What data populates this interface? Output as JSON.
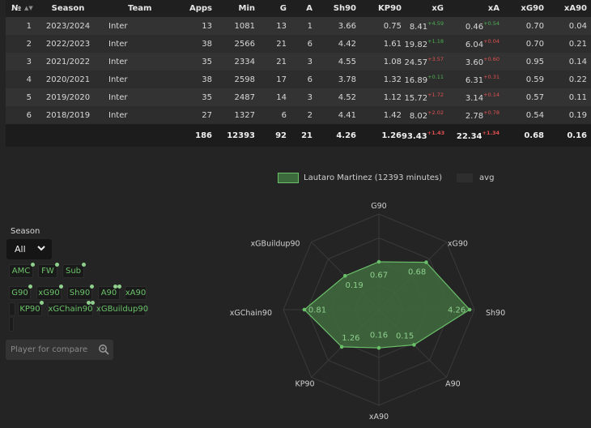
{
  "table": {
    "headers": {
      "num": "№",
      "season": "Season",
      "team": "Team",
      "apps": "Apps",
      "min": "Min",
      "g": "G",
      "a": "A",
      "sh90": "Sh90",
      "kp90": "KP90",
      "xg": "xG",
      "xa": "xA",
      "xg90": "xG90",
      "xa90": "xA90"
    },
    "rows": [
      {
        "num": "1",
        "season": "2023/2024",
        "team": "Inter",
        "apps": "13",
        "min": "1081",
        "g": "13",
        "a": "1",
        "sh90": "3.66",
        "kp90": "0.75",
        "xg": "8.41",
        "xg_diff": "+4.59",
        "xg_diff_sign": "pos",
        "xa": "0.46",
        "xa_diff": "+0.54",
        "xa_diff_sign": "pos",
        "xg90": "0.70",
        "xa90": "0.04"
      },
      {
        "num": "2",
        "season": "2022/2023",
        "team": "Inter",
        "apps": "38",
        "min": "2566",
        "g": "21",
        "a": "6",
        "sh90": "4.42",
        "kp90": "1.61",
        "xg": "19.82",
        "xg_diff": "+1.18",
        "xg_diff_sign": "pos",
        "xa": "6.04",
        "xa_diff": "+0.04",
        "xa_diff_sign": "neg",
        "xg90": "0.70",
        "xa90": "0.21"
      },
      {
        "num": "3",
        "season": "2021/2022",
        "team": "Inter",
        "apps": "35",
        "min": "2334",
        "g": "21",
        "a": "3",
        "sh90": "4.55",
        "kp90": "1.08",
        "xg": "24.57",
        "xg_diff": "+3.57",
        "xg_diff_sign": "neg",
        "xa": "3.60",
        "xa_diff": "+0.60",
        "xa_diff_sign": "neg",
        "xg90": "0.95",
        "xa90": "0.14"
      },
      {
        "num": "4",
        "season": "2020/2021",
        "team": "Inter",
        "apps": "38",
        "min": "2598",
        "g": "17",
        "a": "6",
        "sh90": "3.78",
        "kp90": "1.32",
        "xg": "16.89",
        "xg_diff": "+0.11",
        "xg_diff_sign": "pos",
        "xa": "6.31",
        "xa_diff": "+0.31",
        "xa_diff_sign": "neg",
        "xg90": "0.59",
        "xa90": "0.22"
      },
      {
        "num": "5",
        "season": "2019/2020",
        "team": "Inter",
        "apps": "35",
        "min": "2487",
        "g": "14",
        "a": "3",
        "sh90": "4.52",
        "kp90": "1.12",
        "xg": "15.72",
        "xg_diff": "+1.72",
        "xg_diff_sign": "neg",
        "xa": "3.14",
        "xa_diff": "+0.14",
        "xa_diff_sign": "neg",
        "xg90": "0.57",
        "xa90": "0.11"
      },
      {
        "num": "6",
        "season": "2018/2019",
        "team": "Inter",
        "apps": "27",
        "min": "1327",
        "g": "6",
        "a": "2",
        "sh90": "4.41",
        "kp90": "1.42",
        "xg": "8.02",
        "xg_diff": "+2.02",
        "xg_diff_sign": "neg",
        "xa": "2.78",
        "xa_diff": "+0.78",
        "xa_diff_sign": "neg",
        "xg90": "0.54",
        "xa90": "0.19"
      }
    ],
    "totals": {
      "apps": "186",
      "min": "12393",
      "g": "92",
      "a": "21",
      "sh90": "4.26",
      "kp90": "1.26",
      "xg": "93.43",
      "xg_diff": "+1.43",
      "xa": "22.34",
      "xa_diff": "+1.34",
      "xg90": "0.68",
      "xa90": "0.16"
    }
  },
  "legend": {
    "player": "Lautaro Martinez (12393 minutes)",
    "avg": "avg"
  },
  "filters": {
    "season_label": "Season",
    "season_value": "All",
    "positions": [
      "AMC",
      "FW",
      "Sub"
    ],
    "stats_row1": [
      "G90",
      "xG90",
      "Sh90",
      "A90",
      "xA90"
    ],
    "stats_row2": [
      "KP90",
      "xGChain90",
      "xGBuildup90"
    ],
    "compare_placeholder": "Player for compare"
  },
  "radar": {
    "axes": [
      "G90",
      "xG90",
      "Sh90",
      "A90",
      "xA90",
      "KP90",
      "xGChain90",
      "xGBuildup90"
    ],
    "values": [
      "0.67",
      "0.68",
      "4.26",
      "0.15",
      "0.16",
      "1.26",
      "0.81",
      "0.19"
    ],
    "fractions": [
      0.5,
      0.7,
      0.95,
      0.52,
      0.4,
      0.55,
      0.78,
      0.5
    ],
    "colors": {
      "fill": "#3f6b3e",
      "stroke": "#6abf69",
      "grid": "#3a3a3a"
    }
  }
}
